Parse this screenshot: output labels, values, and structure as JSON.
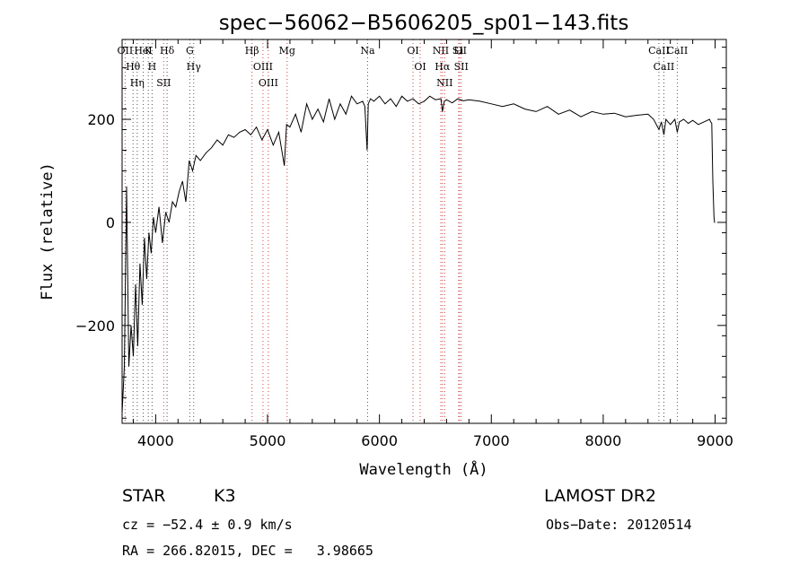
{
  "chart_data": {
    "type": "line",
    "title": "spec−56062−B5606205_sp01−143.fits",
    "xlabel": "Wavelength (Å)",
    "ylabel": "Flux (relative)",
    "xlim": [
      3700,
      9100
    ],
    "ylim": [
      -390,
      355
    ],
    "x_ticks": [
      4000,
      5000,
      6000,
      7000,
      8000,
      9000
    ],
    "y_ticks": [
      -200,
      0,
      200
    ],
    "series": [
      {
        "x": [
          3700,
          3720,
          3740,
          3760,
          3780,
          3800,
          3820,
          3840,
          3860,
          3880,
          3900,
          3920,
          3940,
          3960,
          3980,
          4000,
          4030,
          4060,
          4090,
          4120,
          4150,
          4180,
          4210,
          4240,
          4270,
          4300,
          4330,
          4360,
          4400,
          4450,
          4500,
          4550,
          4600,
          4650,
          4700,
          4750,
          4800,
          4850,
          4900,
          4950,
          5000,
          5050,
          5100,
          5150,
          5170,
          5200,
          5250,
          5300,
          5350,
          5400,
          5450,
          5500,
          5550,
          5600,
          5650,
          5700,
          5750,
          5800,
          5850,
          5870,
          5890,
          5900,
          5920,
          5950,
          6000,
          6050,
          6100,
          6150,
          6200,
          6250,
          6300,
          6350,
          6400,
          6450,
          6500,
          6550,
          6563,
          6580,
          6600,
          6650,
          6700,
          6750,
          6800,
          6900,
          7000,
          7100,
          7200,
          7300,
          7400,
          7500,
          7600,
          7700,
          7800,
          7900,
          8000,
          8100,
          8200,
          8300,
          8400,
          8450,
          8498,
          8520,
          8542,
          8560,
          8600,
          8640,
          8662,
          8680,
          8720,
          8760,
          8800,
          8850,
          8900,
          8950,
          8960,
          8970,
          8980,
          8990,
          8995,
          9000
        ],
        "y": [
          -370,
          -280,
          70,
          -280,
          -200,
          -260,
          -120,
          -240,
          -80,
          -160,
          -30,
          -110,
          -20,
          -60,
          10,
          -20,
          30,
          -40,
          20,
          0,
          40,
          30,
          60,
          80,
          40,
          120,
          100,
          130,
          120,
          135,
          145,
          160,
          150,
          170,
          165,
          175,
          180,
          170,
          185,
          160,
          180,
          150,
          175,
          110,
          190,
          185,
          210,
          175,
          230,
          200,
          220,
          195,
          240,
          200,
          230,
          210,
          245,
          230,
          235,
          225,
          140,
          230,
          240,
          235,
          245,
          230,
          240,
          225,
          245,
          235,
          240,
          230,
          235,
          245,
          238,
          240,
          215,
          235,
          238,
          232,
          240,
          236,
          238,
          235,
          230,
          225,
          230,
          220,
          215,
          225,
          210,
          218,
          205,
          215,
          210,
          212,
          205,
          208,
          210,
          200,
          180,
          195,
          170,
          200,
          190,
          200,
          175,
          195,
          200,
          192,
          198,
          190,
          195,
          200,
          195,
          192,
          80,
          10,
          0,
          0
        ]
      }
    ],
    "lines": [
      {
        "label": "OII",
        "wl": 3727
      },
      {
        "label": "Hθ",
        "wl": 3798
      },
      {
        "label": "Hη",
        "wl": 3835
      },
      {
        "label": "HeI",
        "wl": 3889
      },
      {
        "label": "K",
        "wl": 3934
      },
      {
        "label": "H",
        "wl": 3968
      },
      {
        "label": "SII",
        "wl": 4072
      },
      {
        "label": "Hδ",
        "wl": 4102
      },
      {
        "label": "G",
        "wl": 4305
      },
      {
        "label": "Hγ",
        "wl": 4340
      },
      {
        "label": "Hβ",
        "wl": 4861
      },
      {
        "label": "OIII",
        "wl": 4959
      },
      {
        "label": "OIII",
        "wl": 5007
      },
      {
        "label": "Mg",
        "wl": 5175
      },
      {
        "label": "Na",
        "wl": 5894
      },
      {
        "label": "OI",
        "wl": 6300
      },
      {
        "label": "OI",
        "wl": 6364
      },
      {
        "label": "NII",
        "wl": 6548
      },
      {
        "label": "Hα",
        "wl": 6563
      },
      {
        "label": "NII",
        "wl": 6583
      },
      {
        "label": "Li",
        "wl": 6708
      },
      {
        "label": "SII",
        "wl": 6716
      },
      {
        "label": "SII",
        "wl": 6731
      },
      {
        "label": "CaII",
        "wl": 8498
      },
      {
        "label": "CaII",
        "wl": 8542
      },
      {
        "label": "CaII",
        "wl": 8662
      }
    ],
    "grid": false
  },
  "info": {
    "class": "STAR",
    "subclass": "K3",
    "survey": "LAMOST DR2",
    "cz": "cz = −52.4 ± 0.9 km/s",
    "obs_date": "Obs−Date: 20120514",
    "coords": "RA = 266.82015, DEC =   3.98665"
  },
  "colors": {
    "spectrum": "#000000",
    "emission_line": "#d04040",
    "absorption_line": "#555555"
  }
}
